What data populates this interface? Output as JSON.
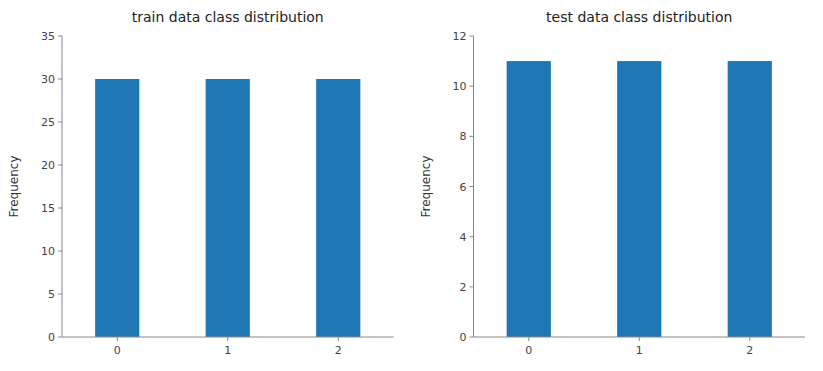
{
  "chart_data": [
    {
      "type": "bar",
      "title": "train data class distribution",
      "ylabel": "Frequency",
      "x": [
        0,
        1,
        2
      ],
      "values": [
        30,
        30,
        30
      ],
      "color": "#1f77b4",
      "xlim": [
        -0.5,
        2.5
      ],
      "xticks": [
        0,
        1,
        2
      ],
      "ylim": [
        0,
        35
      ],
      "yticks": [
        0,
        5,
        10,
        15,
        20,
        25,
        30,
        35
      ],
      "grid": false
    },
    {
      "type": "bar",
      "title": "test data class distribution",
      "ylabel": "Frequency",
      "x": [
        0,
        1,
        2
      ],
      "values": [
        11,
        11,
        11
      ],
      "color": "#1f77b4",
      "xlim": [
        -0.5,
        2.5
      ],
      "xticks": [
        0,
        1,
        2
      ],
      "ylim": [
        0,
        12
      ],
      "yticks": [
        0,
        2,
        4,
        6,
        8,
        10,
        12
      ],
      "grid": false
    }
  ]
}
